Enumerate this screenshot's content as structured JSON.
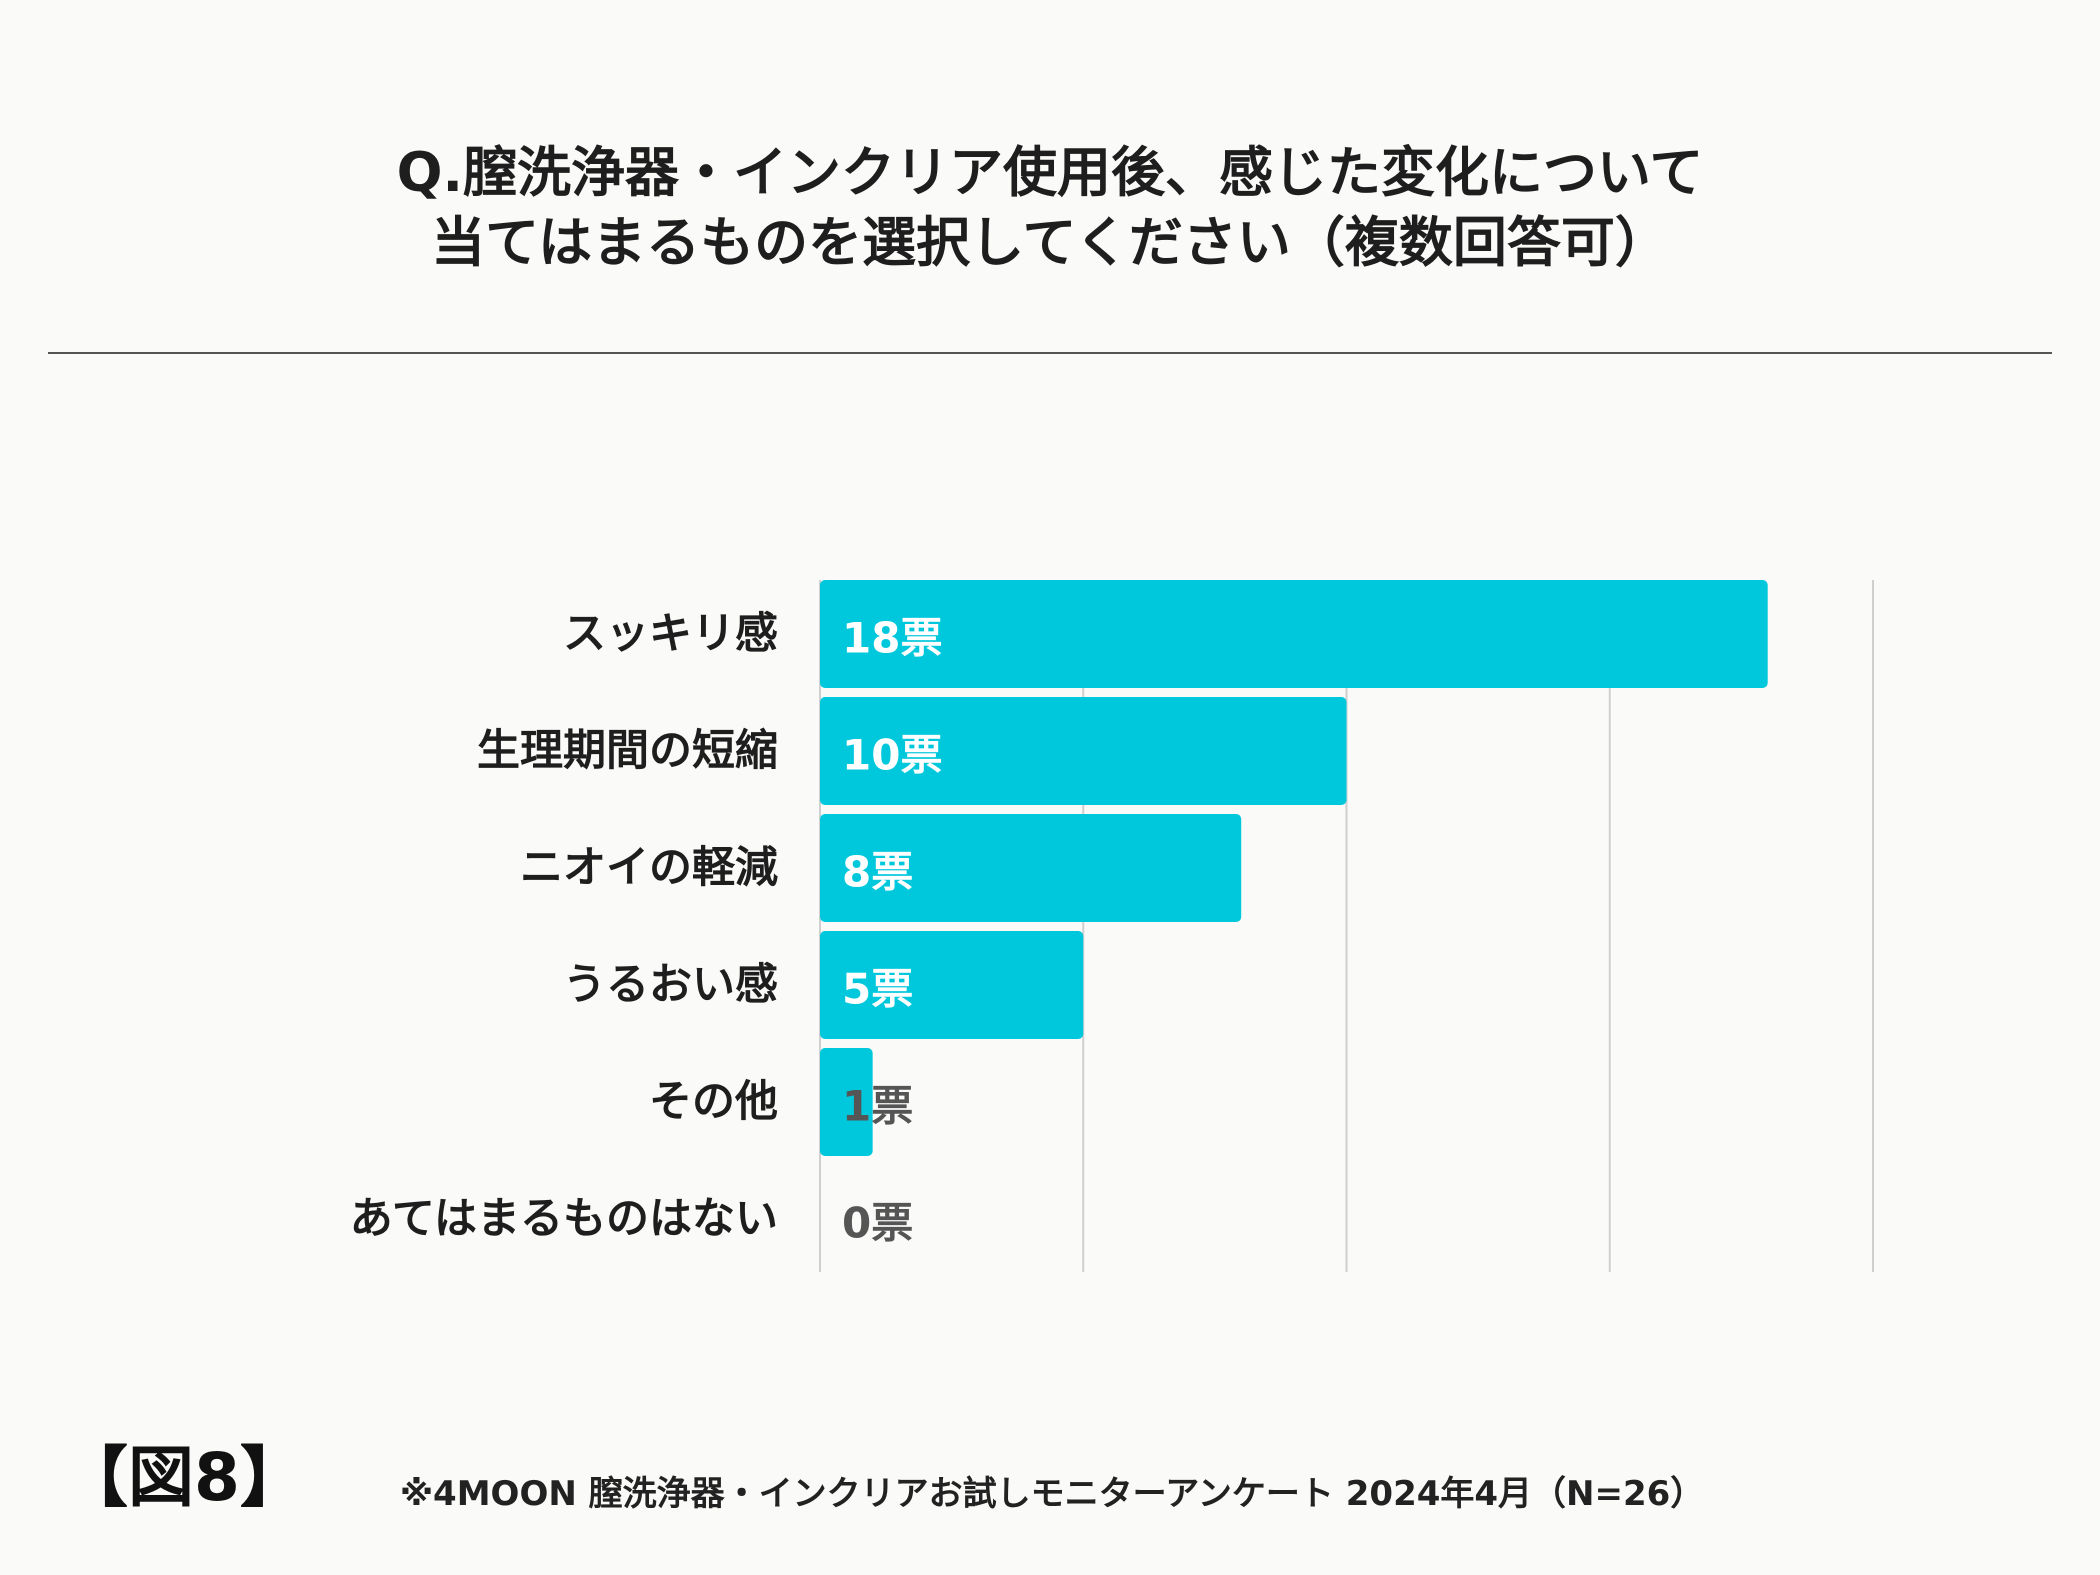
{
  "title": {
    "line1": "Q.膣洗浄器・インクリア使用後、感じた変化について",
    "line2": "当てはまるものを選択してください（複数回答可）"
  },
  "figure_label": "【図8】",
  "footnote": "※4MOON 膣洗浄器・インクリアお試しモニターアンケート 2024年4月（N=26）",
  "colors": {
    "bar": "#00c8dc",
    "label_inside": "#ffffff",
    "label_outside": "#555555",
    "grid": "#cfcfcf"
  },
  "chart_data": {
    "type": "bar",
    "orientation": "horizontal",
    "categories": [
      "スッキリ感",
      "生理期間の短縮",
      "ニオイの軽減",
      "うるおい感",
      "その他",
      "あてはまるものはない"
    ],
    "values": [
      18,
      10,
      8,
      5,
      1,
      0
    ],
    "data_labels": [
      "18票",
      "10票",
      "8票",
      "5票",
      "1票",
      "0票"
    ],
    "xlim": [
      0,
      20
    ],
    "x_gridlines": [
      0,
      5,
      10,
      15,
      20
    ],
    "grid": true,
    "legend": "none"
  }
}
